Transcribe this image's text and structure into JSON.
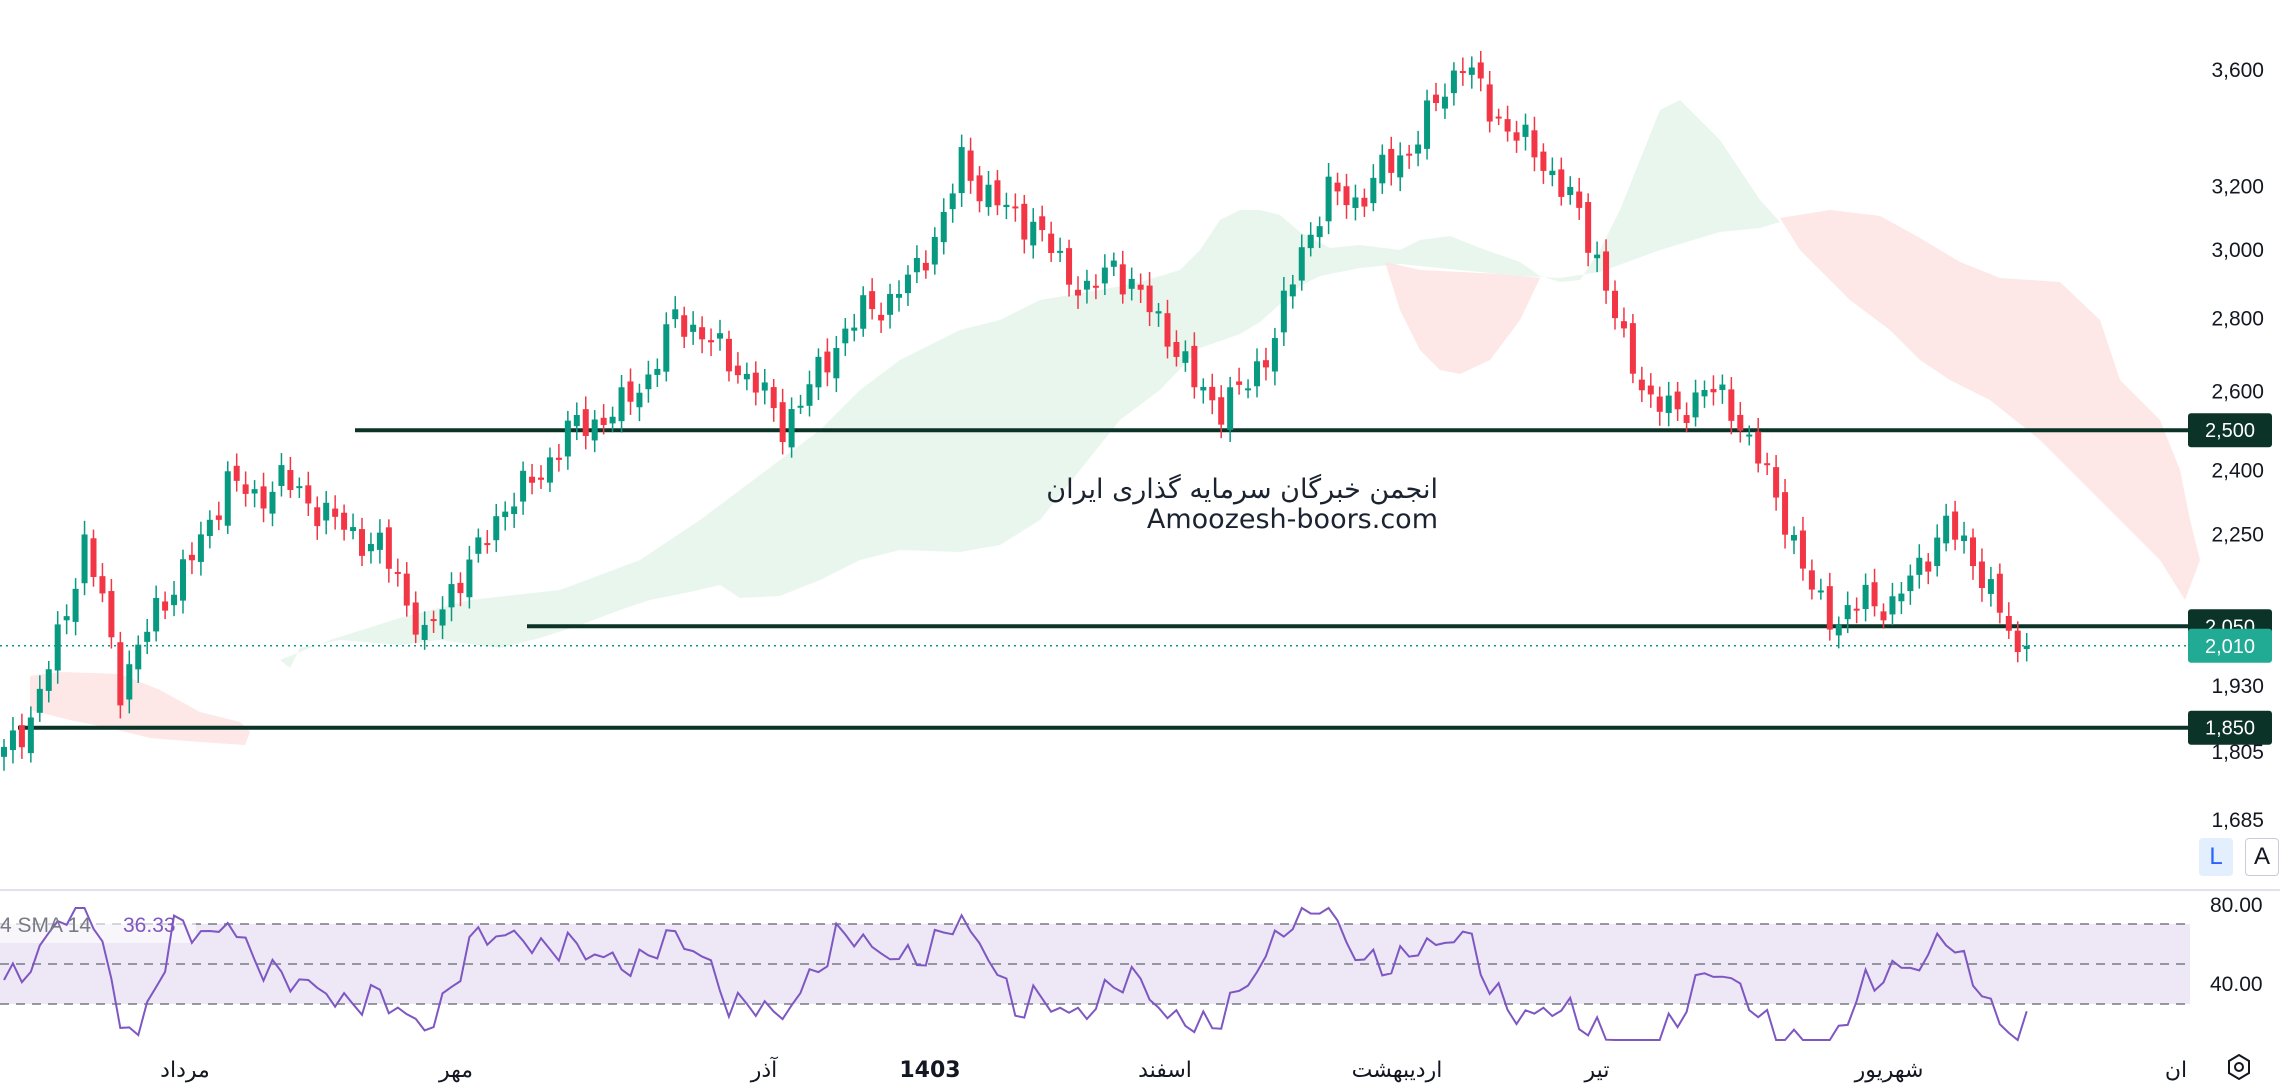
{
  "watermark": {
    "line1": "انجمن خبرگان سرمایه گذاری ایران",
    "line2": "Amoozesh-boors.com"
  },
  "price_axis": {
    "tick_labels": [
      "3,600",
      "3,200",
      "3,000",
      "2,800",
      "2,600",
      "2,400",
      "2,250",
      "1,930",
      "1,805",
      "1,685"
    ]
  },
  "badges": [
    {
      "label": "2,500",
      "color": "#0c3327"
    },
    {
      "label": "2,050",
      "color": "#0c3327"
    },
    {
      "label": "2,010",
      "color": "#22ab94"
    },
    {
      "label": "1,850",
      "color": "#0c3327"
    }
  ],
  "rsi": {
    "legend": "4 SMA 14",
    "value": "36.33",
    "tick_labels": [
      "80.00",
      "40.00"
    ],
    "line_color": "#7e57c2"
  },
  "time_axis": {
    "labels": [
      "مرداد",
      "مهر",
      "آذر",
      "1403",
      "اسفند",
      "اردیبهشت",
      "تیر",
      "شهریور",
      "ان"
    ]
  },
  "scale_buttons": {
    "log": "L",
    "auto": "A"
  },
  "colors": {
    "up": "#089981",
    "down": "#f23645",
    "level_line": "#0c3327"
  },
  "chart_data": {
    "type": "candlestick",
    "price_scale": "log",
    "horizontal_levels": [
      2500,
      2050,
      1850
    ],
    "last_price": 2010,
    "price_anchors": [
      {
        "price": 3600,
        "label": "3,600"
      },
      {
        "price": 1685,
        "label": "1,685"
      }
    ],
    "close_path": [
      [
        0,
        1800
      ],
      [
        3,
        1870
      ],
      [
        6,
        2020
      ],
      [
        9,
        2230
      ],
      [
        11,
        2100
      ],
      [
        13,
        1930
      ],
      [
        17,
        2080
      ],
      [
        22,
        2230
      ],
      [
        25,
        2380
      ],
      [
        28,
        2330
      ],
      [
        31,
        2380
      ],
      [
        35,
        2310
      ],
      [
        39,
        2250
      ],
      [
        42,
        2220
      ],
      [
        44,
        2150
      ],
      [
        47,
        2020
      ],
      [
        50,
        2130
      ],
      [
        53,
        2210
      ],
      [
        56,
        2320
      ],
      [
        60,
        2390
      ],
      [
        63,
        2500
      ],
      [
        66,
        2520
      ],
      [
        69,
        2560
      ],
      [
        72,
        2640
      ],
      [
        75,
        2800
      ],
      [
        78,
        2760
      ],
      [
        81,
        2680
      ],
      [
        84,
        2620
      ],
      [
        87,
        2510
      ],
      [
        90,
        2610
      ],
      [
        93,
        2730
      ],
      [
        96,
        2820
      ],
      [
        99,
        2850
      ],
      [
        102,
        2940
      ],
      [
        105,
        3100
      ],
      [
        107,
        3280
      ],
      [
        109,
        3200
      ],
      [
        112,
        3120
      ],
      [
        115,
        3080
      ],
      [
        118,
        2960
      ],
      [
        121,
        2870
      ],
      [
        124,
        2960
      ],
      [
        127,
        2860
      ],
      [
        130,
        2760
      ],
      [
        133,
        2620
      ],
      [
        136,
        2560
      ],
      [
        139,
        2620
      ],
      [
        142,
        2750
      ],
      [
        145,
        3000
      ],
      [
        148,
        3180
      ],
      [
        151,
        3150
      ],
      [
        154,
        3250
      ],
      [
        157,
        3320
      ],
      [
        160,
        3480
      ],
      [
        163,
        3640
      ],
      [
        166,
        3460
      ],
      [
        169,
        3370
      ],
      [
        172,
        3280
      ],
      [
        175,
        3160
      ],
      [
        178,
        2980
      ],
      [
        181,
        2720
      ],
      [
        184,
        2580
      ],
      [
        187,
        2540
      ],
      [
        190,
        2610
      ],
      [
        193,
        2560
      ],
      [
        196,
        2430
      ],
      [
        199,
        2290
      ],
      [
        202,
        2120
      ],
      [
        205,
        2060
      ],
      [
        208,
        2110
      ],
      [
        211,
        2090
      ],
      [
        214,
        2180
      ],
      [
        217,
        2270
      ],
      [
        220,
        2200
      ],
      [
        223,
        2080
      ],
      [
        225,
        1990
      ],
      [
        226,
        2010
      ]
    ]
  }
}
